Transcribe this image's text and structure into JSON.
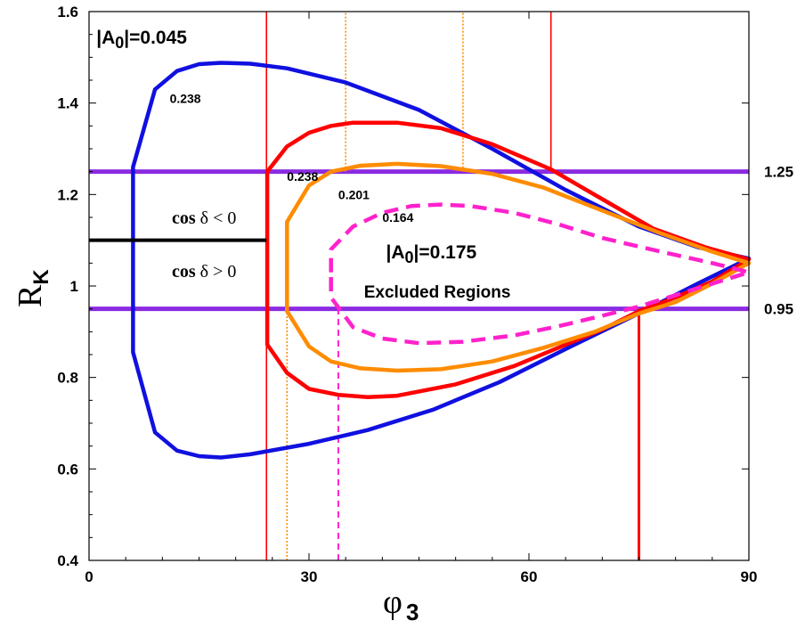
{
  "chart_data": {
    "type": "line",
    "xlabel": {
      "main": "φ",
      "sub": "3"
    },
    "ylabel": {
      "main": "R",
      "sub": "K"
    },
    "xlim": [
      0,
      90
    ],
    "ylim": [
      0.4,
      1.6
    ],
    "x_ticks": [
      0,
      30,
      60,
      90
    ],
    "y_ticks": [
      0.4,
      0.6,
      0.8,
      1,
      1.2,
      1.4,
      1.6
    ],
    "grid": false,
    "colors": {
      "blue": "#1010e0",
      "red": "#ff0000",
      "orange": "#ff8c00",
      "magenta": "#ff22cc",
      "purple": "#8a2be2",
      "black": "#000000"
    },
    "horizontal_bands": [
      {
        "y": 1.25,
        "label": "1.25"
      },
      {
        "y": 0.95,
        "label": "0.95"
      }
    ],
    "divider": {
      "x": [
        0,
        24.2
      ],
      "y": 1.1,
      "label_above": {
        "pre": "cos ",
        "greek": "δ",
        "post": " < 0"
      },
      "label_below": {
        "pre": "cos ",
        "greek": "δ",
        "post": " > 0"
      }
    },
    "series": [
      {
        "color": "blue",
        "style": "solid",
        "points": [
          [
            6,
            1.06
          ],
          [
            6,
            1.26
          ],
          [
            9,
            1.43
          ],
          [
            12,
            1.47
          ],
          [
            15,
            1.485
          ],
          [
            18,
            1.488
          ],
          [
            22,
            1.486
          ],
          [
            27,
            1.476
          ],
          [
            35,
            1.445
          ],
          [
            45,
            1.385
          ],
          [
            55,
            1.3
          ],
          [
            65,
            1.21
          ],
          [
            75,
            1.13
          ],
          [
            83,
            1.085
          ],
          [
            90,
            1.06
          ],
          [
            83,
            1.005
          ],
          [
            75,
            0.94
          ],
          [
            66,
            0.87
          ],
          [
            56,
            0.79
          ],
          [
            47,
            0.73
          ],
          [
            38,
            0.685
          ],
          [
            30,
            0.655
          ],
          [
            22,
            0.632
          ],
          [
            18,
            0.625
          ],
          [
            15,
            0.628
          ],
          [
            12,
            0.64
          ],
          [
            9,
            0.68
          ],
          [
            6,
            0.855
          ],
          [
            6,
            1.06
          ]
        ]
      },
      {
        "color": "red",
        "style": "solid",
        "points": [
          [
            24.3,
            1.06
          ],
          [
            24.3,
            1.25
          ],
          [
            27,
            1.305
          ],
          [
            30,
            1.335
          ],
          [
            33,
            1.35
          ],
          [
            36,
            1.357
          ],
          [
            42,
            1.357
          ],
          [
            48,
            1.345
          ],
          [
            55,
            1.31
          ],
          [
            63,
            1.255
          ],
          [
            70,
            1.19
          ],
          [
            77,
            1.125
          ],
          [
            84,
            1.085
          ],
          [
            90,
            1.058
          ],
          [
            85,
            1.01
          ],
          [
            80,
            0.975
          ],
          [
            75,
            0.945
          ],
          [
            70,
            0.905
          ],
          [
            64,
            0.865
          ],
          [
            58,
            0.825
          ],
          [
            50,
            0.785
          ],
          [
            42,
            0.76
          ],
          [
            38,
            0.757
          ],
          [
            34,
            0.762
          ],
          [
            30,
            0.775
          ],
          [
            27,
            0.81
          ],
          [
            24.3,
            0.872
          ],
          [
            24.3,
            1.06
          ]
        ]
      },
      {
        "color": "orange",
        "style": "solid",
        "points": [
          [
            27,
            1.06
          ],
          [
            27,
            1.14
          ],
          [
            30,
            1.22
          ],
          [
            33,
            1.25
          ],
          [
            37,
            1.263
          ],
          [
            42,
            1.267
          ],
          [
            48,
            1.262
          ],
          [
            55,
            1.245
          ],
          [
            62,
            1.215
          ],
          [
            70,
            1.165
          ],
          [
            78,
            1.115
          ],
          [
            85,
            1.075
          ],
          [
            90,
            1.05
          ],
          [
            85,
            1.005
          ],
          [
            80,
            0.965
          ],
          [
            75,
            0.94
          ],
          [
            69,
            0.9
          ],
          [
            62,
            0.865
          ],
          [
            55,
            0.835
          ],
          [
            48,
            0.818
          ],
          [
            42,
            0.815
          ],
          [
            37,
            0.82
          ],
          [
            33,
            0.835
          ],
          [
            30,
            0.868
          ],
          [
            27,
            0.945
          ],
          [
            27,
            1.06
          ]
        ]
      },
      {
        "color": "magenta",
        "style": "dashed",
        "points": [
          [
            33,
            1.03
          ],
          [
            33,
            1.08
          ],
          [
            36,
            1.13
          ],
          [
            40,
            1.16
          ],
          [
            44,
            1.175
          ],
          [
            48,
            1.178
          ],
          [
            52,
            1.175
          ],
          [
            58,
            1.16
          ],
          [
            64,
            1.135
          ],
          [
            70,
            1.105
          ],
          [
            78,
            1.075
          ],
          [
            85,
            1.05
          ],
          [
            90,
            1.03
          ],
          [
            85,
            1.005
          ],
          [
            80,
            0.98
          ],
          [
            75,
            0.955
          ],
          [
            70,
            0.935
          ],
          [
            64,
            0.912
          ],
          [
            58,
            0.892
          ],
          [
            51,
            0.878
          ],
          [
            45,
            0.875
          ],
          [
            40,
            0.885
          ],
          [
            36,
            0.91
          ],
          [
            33,
            0.975
          ],
          [
            33,
            1.03
          ]
        ]
      }
    ],
    "vertical_lines": [
      {
        "x": 24.2,
        "y0": 0.4,
        "y1": 1.6,
        "color": "red",
        "style": "thin"
      },
      {
        "x": 63,
        "y0": 1.25,
        "y1": 1.6,
        "color": "red",
        "style": "thin"
      },
      {
        "x": 75,
        "y0": 0.4,
        "y1": 0.95,
        "color": "red",
        "style": "thick"
      },
      {
        "x": 27,
        "y0": 0.4,
        "y1": 0.95,
        "color": "orange",
        "style": "dotted"
      },
      {
        "x": 35,
        "y0": 1.25,
        "y1": 1.6,
        "color": "orange",
        "style": "dotted"
      },
      {
        "x": 51,
        "y0": 1.25,
        "y1": 1.6,
        "color": "orange",
        "style": "dotted"
      },
      {
        "x": 34,
        "y0": 0.4,
        "y1": 0.95,
        "color": "magenta",
        "style": "dashed"
      }
    ],
    "annotations": {
      "a0_blue": {
        "pre": "|A",
        "sub": "0",
        "post": "|=0.045",
        "x": 1,
        "y": 1.53
      },
      "a0_center": {
        "pre": "|A",
        "sub": "0",
        "post": "|=0.175",
        "x": 40.5,
        "y": 1.06
      },
      "excluded": {
        "text": "Excluded Regions",
        "x": 37.5,
        "y": 0.975
      },
      "lbl_blue": {
        "text": "0.238",
        "x": 11,
        "y": 1.4
      },
      "lbl_red": {
        "text": "0.238",
        "x": 27,
        "y": 1.23
      },
      "lbl_orange": {
        "text": "0.201",
        "x": 34,
        "y": 1.19
      },
      "lbl_magenta": {
        "text": "0.164",
        "x": 40,
        "y": 1.14
      }
    }
  }
}
